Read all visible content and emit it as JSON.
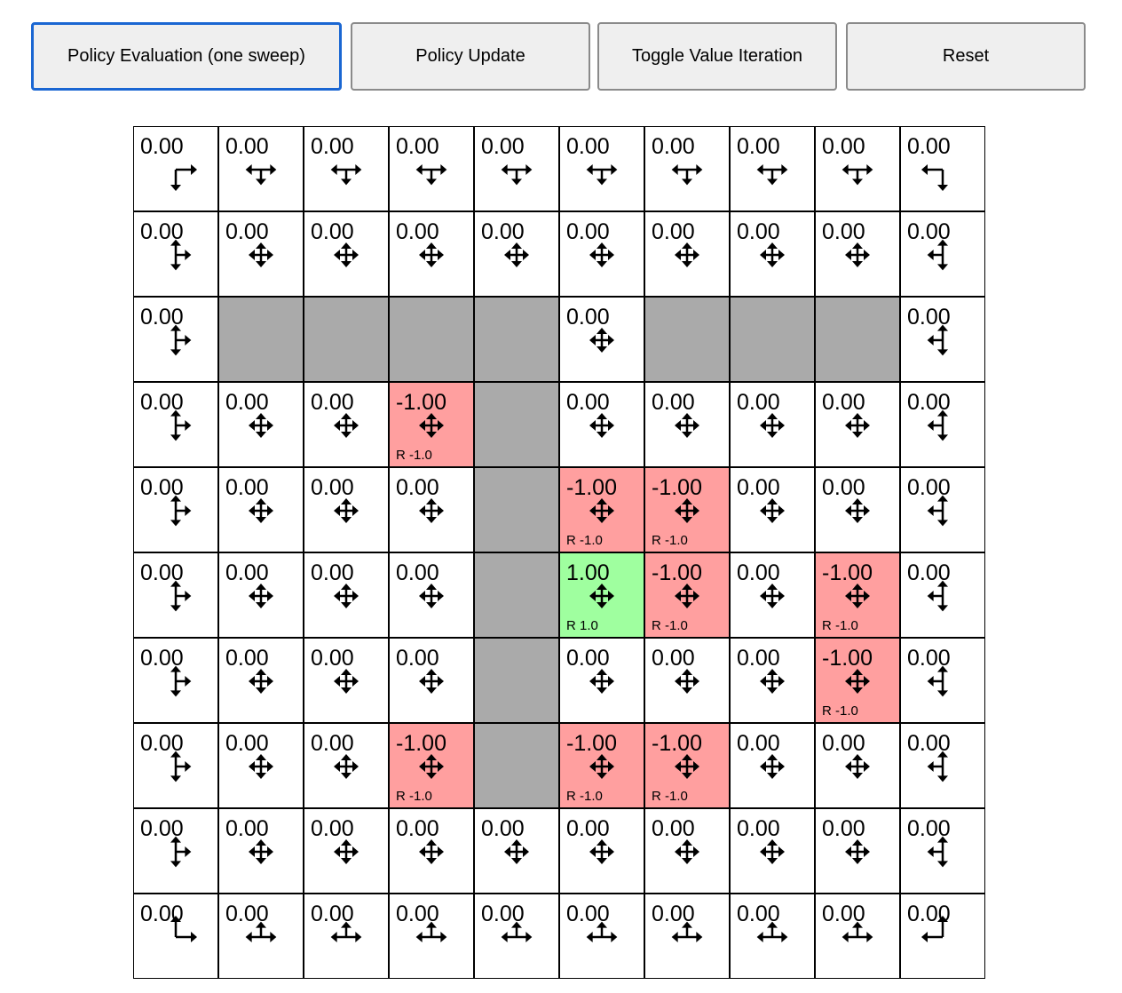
{
  "toolbar": {
    "buttons": [
      {
        "label": "Policy Evaluation (one sweep)",
        "focused": true
      },
      {
        "label": "Policy Update"
      },
      {
        "label": "Toggle Value Iteration"
      },
      {
        "label": "Reset"
      }
    ]
  },
  "colors": {
    "wall": "#aaaaaa",
    "negative": "#ff9f9f",
    "positive": "#9fff9f",
    "focus": "#1a66d2"
  },
  "grid": {
    "walls": [
      [
        2,
        1
      ],
      [
        2,
        2
      ],
      [
        2,
        3
      ],
      [
        2,
        4
      ],
      [
        2,
        6
      ],
      [
        2,
        7
      ],
      [
        2,
        8
      ],
      [
        3,
        4
      ],
      [
        4,
        4
      ],
      [
        5,
        4
      ],
      [
        6,
        4
      ],
      [
        7,
        4
      ]
    ],
    "cells_nonzero": [
      {
        "row": 3,
        "col": 3,
        "value": "-1.00",
        "reward": "R -1.0"
      },
      {
        "row": 4,
        "col": 5,
        "value": "-1.00",
        "reward": "R -1.0"
      },
      {
        "row": 4,
        "col": 6,
        "value": "-1.00",
        "reward": "R -1.0"
      },
      {
        "row": 5,
        "col": 5,
        "value": "1.00",
        "reward": "R 1.0"
      },
      {
        "row": 5,
        "col": 6,
        "value": "-1.00",
        "reward": "R -1.0"
      },
      {
        "row": 5,
        "col": 8,
        "value": "-1.00",
        "reward": "R -1.0"
      },
      {
        "row": 6,
        "col": 8,
        "value": "-1.00",
        "reward": "R -1.0"
      },
      {
        "row": 7,
        "col": 3,
        "value": "-1.00",
        "reward": "R -1.0"
      },
      {
        "row": 7,
        "col": 5,
        "value": "-1.00",
        "reward": "R -1.0"
      },
      {
        "row": 7,
        "col": 6,
        "value": "-1.00",
        "reward": "R -1.0"
      }
    ],
    "default_value": "0.00",
    "policy": "uniform over allowed actions"
  }
}
